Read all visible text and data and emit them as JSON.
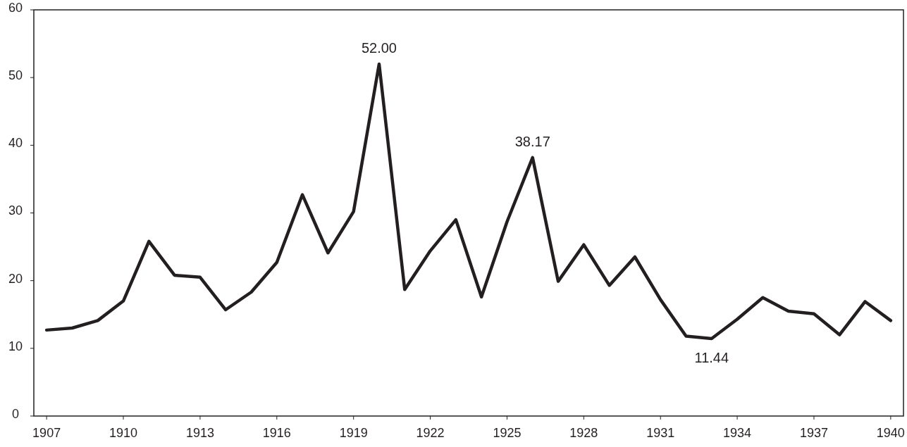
{
  "chart_data": {
    "type": "line",
    "x": [
      1907,
      1908,
      1909,
      1910,
      1911,
      1912,
      1913,
      1914,
      1915,
      1916,
      1917,
      1918,
      1919,
      1920,
      1921,
      1922,
      1923,
      1924,
      1925,
      1926,
      1927,
      1928,
      1929,
      1930,
      1931,
      1932,
      1933,
      1934,
      1935,
      1936,
      1937,
      1938,
      1939,
      1940
    ],
    "series": [
      {
        "color": "#231f20",
        "values": [
          12.7,
          13.0,
          14.1,
          17.0,
          25.8,
          20.8,
          20.5,
          15.7,
          18.3,
          22.7,
          32.7,
          24.1,
          30.2,
          52,
          18.7,
          24.4,
          29.0,
          17.6,
          28.7,
          38.17,
          19.9,
          25.3,
          19.3,
          23.5,
          17.2,
          11.8,
          11.44,
          14.3,
          17.5,
          15.5,
          15.1,
          12.0,
          16.9,
          14.1
        ]
      }
    ],
    "xlim": [
      1906.5,
      1940.5
    ],
    "xticks": [
      1907,
      1910,
      1913,
      1916,
      1919,
      1922,
      1925,
      1928,
      1931,
      1934,
      1937,
      1940
    ],
    "ylim": [
      0,
      60
    ],
    "yticks": [
      0,
      10,
      20,
      30,
      40,
      50,
      60
    ],
    "grid": false,
    "marker": "none",
    "line_style": "solid",
    "annotations": [
      {
        "text": "52.00",
        "x": 1920,
        "y": 52
      },
      {
        "text": "38.17",
        "x": 1926,
        "y": 38.17
      },
      {
        "text": "11.44",
        "x": 1933,
        "y": 11.44
      }
    ]
  }
}
